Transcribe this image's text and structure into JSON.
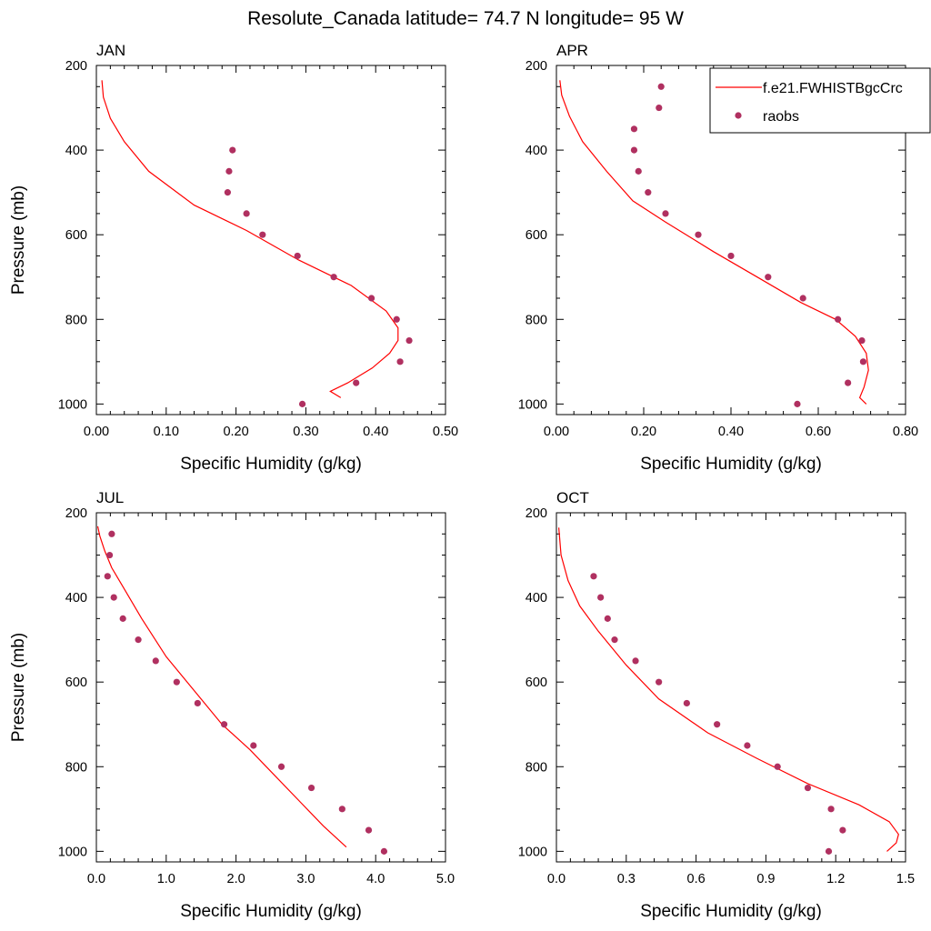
{
  "figure": {
    "title": "Resolute_Canada  latitude= 74.7 N longitude= 95 W"
  },
  "legend": {
    "model_label": "f.e21.FWHISTBgcCrc",
    "obs_label": "raobs"
  },
  "colors": {
    "model_line": "#ff0000",
    "obs_marker": "#b03060",
    "axis": "#000000"
  },
  "chart_data": [
    {
      "type": "line",
      "title": "JAN",
      "xlabel": "Specific Humidity (g/kg)",
      "ylabel": "Pressure (mb)",
      "xlim": [
        0,
        0.5
      ],
      "ylim": [
        200,
        1025
      ],
      "y_inverted": true,
      "xticks": [
        0,
        0.1,
        0.2,
        0.3,
        0.4,
        0.5
      ],
      "xtick_labels": [
        "0.00",
        "0.10",
        "0.20",
        "0.30",
        "0.40",
        "0.50"
      ],
      "yticks": [
        200,
        400,
        600,
        800,
        1000
      ],
      "ytick_labels": [
        "200",
        "400",
        "600",
        "800",
        "1000"
      ],
      "series": [
        {
          "name": "f.e21.FWHISTBgcCrc",
          "kind": "line",
          "x": [
            0.35,
            0.335,
            0.36,
            0.395,
            0.42,
            0.432,
            0.432,
            0.415,
            0.365,
            0.29,
            0.215,
            0.14,
            0.075,
            0.04,
            0.02,
            0.01,
            0.008
          ],
          "y": [
            985,
            970,
            950,
            915,
            880,
            850,
            820,
            780,
            720,
            660,
            590,
            530,
            450,
            380,
            325,
            275,
            235
          ]
        },
        {
          "name": "raobs",
          "kind": "scatter",
          "x": [
            0.295,
            0.372,
            0.435,
            0.448,
            0.43,
            0.394,
            0.34,
            0.288,
            0.238,
            0.215,
            0.188,
            0.19,
            0.195
          ],
          "y": [
            1000,
            950,
            900,
            850,
            800,
            750,
            700,
            650,
            600,
            550,
            500,
            450,
            400
          ]
        }
      ]
    },
    {
      "type": "line",
      "title": "APR",
      "xlabel": "Specific Humidity (g/kg)",
      "ylabel": "",
      "xlim": [
        0,
        0.8
      ],
      "ylim": [
        200,
        1025
      ],
      "y_inverted": true,
      "xticks": [
        0,
        0.2,
        0.4,
        0.6,
        0.8
      ],
      "xtick_labels": [
        "0.00",
        "0.20",
        "0.40",
        "0.60",
        "0.80"
      ],
      "yticks": [
        200,
        400,
        600,
        800,
        1000
      ],
      "ytick_labels": [
        "200",
        "400",
        "600",
        "800",
        "1000"
      ],
      "series": [
        {
          "name": "f.e21.FWHISTBgcCrc",
          "kind": "line",
          "x": [
            0.71,
            0.695,
            0.705,
            0.715,
            0.71,
            0.685,
            0.64,
            0.56,
            0.46,
            0.36,
            0.25,
            0.175,
            0.115,
            0.06,
            0.03,
            0.012,
            0.008
          ],
          "y": [
            1000,
            985,
            960,
            920,
            880,
            840,
            800,
            760,
            700,
            640,
            570,
            520,
            450,
            380,
            320,
            270,
            235
          ]
        },
        {
          "name": "raobs",
          "kind": "scatter",
          "x": [
            0.552,
            0.668,
            0.703,
            0.7,
            0.645,
            0.565,
            0.485,
            0.4,
            0.325,
            0.25,
            0.21,
            0.188,
            0.178,
            0.178,
            0.235,
            0.24
          ],
          "y": [
            1000,
            950,
            900,
            850,
            800,
            750,
            700,
            650,
            600,
            550,
            500,
            450,
            400,
            350,
            300,
            250
          ]
        }
      ]
    },
    {
      "type": "line",
      "title": "JUL",
      "xlabel": "Specific Humidity (g/kg)",
      "ylabel": "Pressure (mb)",
      "xlim": [
        0,
        5
      ],
      "ylim": [
        200,
        1025
      ],
      "y_inverted": true,
      "xticks": [
        0,
        1,
        2,
        3,
        4,
        5
      ],
      "xtick_labels": [
        "0.0",
        "1.0",
        "2.0",
        "3.0",
        "4.0",
        "5.0"
      ],
      "yticks": [
        200,
        400,
        600,
        800,
        1000
      ],
      "ytick_labels": [
        "200",
        "400",
        "600",
        "800",
        "1000"
      ],
      "series": [
        {
          "name": "f.e21.FWHISTBgcCrc",
          "kind": "line",
          "x": [
            3.58,
            3.25,
            2.9,
            2.55,
            2.2,
            1.8,
            1.4,
            1.0,
            0.65,
            0.4,
            0.22,
            0.12,
            0.05,
            0.02
          ],
          "y": [
            990,
            940,
            880,
            820,
            760,
            700,
            620,
            540,
            450,
            380,
            330,
            290,
            255,
            232
          ]
        },
        {
          "name": "raobs",
          "kind": "scatter",
          "x": [
            4.12,
            3.9,
            3.52,
            3.08,
            2.65,
            2.25,
            1.83,
            1.45,
            1.15,
            0.85,
            0.6,
            0.38,
            0.25,
            0.16,
            0.19,
            0.22
          ],
          "y": [
            1000,
            950,
            900,
            850,
            800,
            750,
            700,
            650,
            600,
            550,
            500,
            450,
            400,
            350,
            300,
            250
          ]
        }
      ]
    },
    {
      "type": "line",
      "title": "OCT",
      "xlabel": "Specific Humidity (g/kg)",
      "ylabel": "",
      "xlim": [
        0,
        1.5
      ],
      "ylim": [
        200,
        1025
      ],
      "y_inverted": true,
      "xticks": [
        0,
        0.3,
        0.6,
        0.9,
        1.2,
        1.5
      ],
      "xtick_labels": [
        "0.0",
        "0.3",
        "0.6",
        "0.9",
        "1.2",
        "1.5"
      ],
      "yticks": [
        200,
        400,
        600,
        800,
        1000
      ],
      "ytick_labels": [
        "200",
        "400",
        "600",
        "800",
        "1000"
      ],
      "series": [
        {
          "name": "f.e21.FWHISTBgcCrc",
          "kind": "line",
          "x": [
            1.42,
            1.46,
            1.47,
            1.43,
            1.3,
            1.08,
            0.86,
            0.65,
            0.44,
            0.3,
            0.18,
            0.1,
            0.05,
            0.02,
            0.01
          ],
          "y": [
            1000,
            980,
            960,
            930,
            890,
            840,
            780,
            720,
            640,
            560,
            480,
            420,
            360,
            300,
            235
          ]
        },
        {
          "name": "raobs",
          "kind": "scatter",
          "x": [
            1.17,
            1.23,
            1.18,
            1.08,
            0.95,
            0.82,
            0.69,
            0.56,
            0.44,
            0.34,
            0.25,
            0.22,
            0.19,
            0.16
          ],
          "y": [
            1000,
            950,
            900,
            850,
            800,
            750,
            700,
            650,
            600,
            550,
            500,
            450,
            400,
            350
          ]
        }
      ]
    }
  ]
}
